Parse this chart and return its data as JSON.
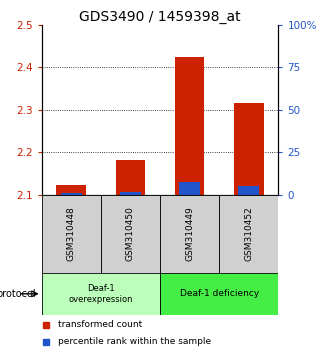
{
  "title": "GDS3490 / 1459398_at",
  "samples": [
    "GSM310448",
    "GSM310450",
    "GSM310449",
    "GSM310452"
  ],
  "red_values": [
    2.122,
    2.182,
    2.425,
    2.315
  ],
  "blue_values": [
    2.105,
    2.106,
    2.13,
    2.12
  ],
  "y_min": 2.1,
  "y_max": 2.5,
  "y_ticks": [
    2.1,
    2.2,
    2.3,
    2.4,
    2.5
  ],
  "y2_ticks": [
    0,
    25,
    50,
    75,
    100
  ],
  "y2_labels": [
    "0",
    "25",
    "50",
    "75",
    "100%"
  ],
  "red_color": "#cc2200",
  "blue_color": "#2255cc",
  "bar_width": 0.5,
  "group1_label": "Deaf-1\noverexpression",
  "group2_label": "Deaf-1 deficiency",
  "group1_color": "#bbffbb",
  "group2_color": "#44ee44",
  "sample_bg_color": "#d0d0d0",
  "protocol_label": "protocol",
  "legend_red": "transformed count",
  "legend_blue": "percentile rank within the sample",
  "grid_lines": [
    2.2,
    2.3,
    2.4
  ],
  "title_fontsize": 10,
  "tick_fontsize": 7.5,
  "label_fontsize": 7
}
